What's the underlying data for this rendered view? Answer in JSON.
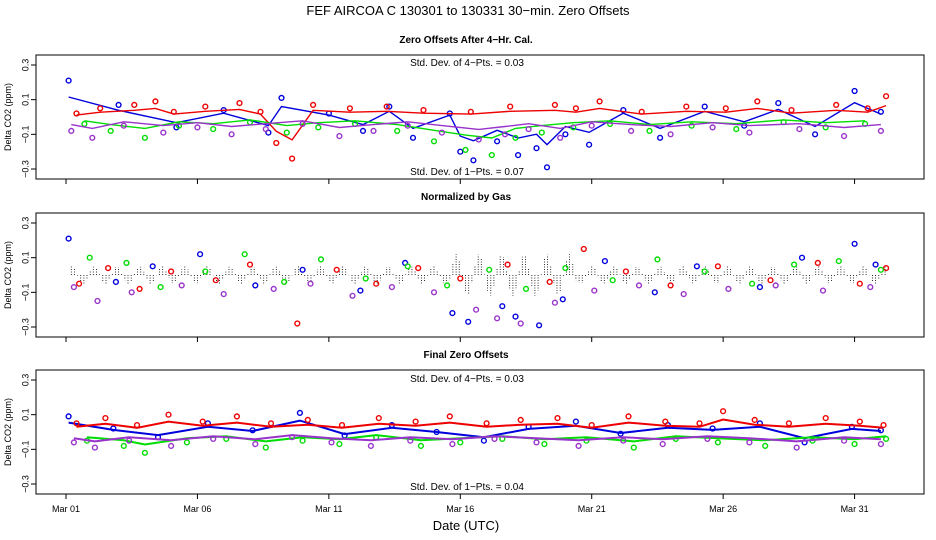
{
  "figure": {
    "title": "FEF   AIRCOA C   130301 to 130331   30−min. Zero Offsets",
    "xlabel": "Date (UTC)"
  },
  "colors": {
    "blue": "#0000dd",
    "red": "#ee0000",
    "green": "#00dd00",
    "purple": "#9933cc",
    "black": "#000000"
  },
  "chart_data": [
    {
      "type": "line",
      "title": "Zero Offsets After 4−Hr. Cal.",
      "ylabel": "Delta CO2 (ppm)",
      "xlabel": "Date (UTC)",
      "ylim": [
        -0.3,
        0.3
      ],
      "yticks": [
        "0.3",
        "0.1",
        "−0.1",
        "−0.3"
      ],
      "yticks_values": [
        0.3,
        0.1,
        -0.1,
        -0.3
      ],
      "xlim": [
        0,
        31.5
      ],
      "xticks": [],
      "stat_top": "Std. Dev. of 4−Pts. =  0.03",
      "stat_bottom": "Std. Dev. of 1−Pts. =  0.07",
      "series": [
        {
          "name": "blue",
          "color": "#0000dd",
          "x": [
            0.1,
            2.0,
            4.2,
            6.0,
            7.7,
            8.2,
            10.0,
            11.3,
            12.3,
            13.2,
            14.6,
            15.0,
            15.5,
            16.4,
            17.2,
            17.9,
            18.3,
            19.0,
            19.9,
            21.2,
            22.6,
            24.3,
            25.8,
            27.1,
            28.5,
            30.0,
            31.0
          ],
          "values": [
            0.21,
            0.07,
            -0.06,
            0.04,
            -0.09,
            0.11,
            0.02,
            -0.08,
            0.06,
            -0.12,
            0.02,
            -0.2,
            -0.25,
            -0.14,
            -0.22,
            -0.18,
            -0.29,
            -0.1,
            -0.16,
            0.04,
            -0.12,
            0.06,
            -0.05,
            0.08,
            -0.1,
            0.15,
            0.03
          ]
        },
        {
          "name": "red",
          "color": "#ee0000",
          "x": [
            0.4,
            1.3,
            2.6,
            3.4,
            4.1,
            5.3,
            6.6,
            7.4,
            8.0,
            8.6,
            9.4,
            10.8,
            12.2,
            13.6,
            15.4,
            16.9,
            18.6,
            19.4,
            20.3,
            21.9,
            23.6,
            25.1,
            26.3,
            27.6,
            29.3,
            30.5,
            31.2
          ],
          "values": [
            0.02,
            0.05,
            0.07,
            0.09,
            0.03,
            0.06,
            0.08,
            0.03,
            -0.15,
            -0.24,
            0.07,
            0.05,
            0.06,
            0.04,
            0.03,
            0.06,
            0.07,
            0.05,
            0.09,
            0.03,
            0.06,
            0.05,
            0.09,
            0.04,
            0.07,
            0.05,
            0.12
          ]
        },
        {
          "name": "green",
          "color": "#00dd00",
          "x": [
            0.7,
            1.7,
            3.0,
            4.3,
            5.6,
            7.0,
            8.4,
            9.6,
            11.0,
            12.6,
            14.0,
            15.2,
            16.2,
            17.1,
            18.1,
            19.3,
            20.7,
            22.2,
            23.8,
            25.5,
            27.3,
            28.9,
            30.4
          ],
          "values": [
            -0.04,
            -0.08,
            -0.12,
            -0.05,
            -0.07,
            -0.03,
            -0.09,
            -0.06,
            -0.04,
            -0.08,
            -0.14,
            -0.19,
            -0.22,
            -0.12,
            -0.09,
            -0.06,
            -0.04,
            -0.08,
            -0.05,
            -0.07,
            -0.03,
            -0.06,
            -0.04
          ]
        },
        {
          "name": "purple",
          "color": "#9933cc",
          "x": [
            0.2,
            1.0,
            2.2,
            3.7,
            5.0,
            6.3,
            7.6,
            9.0,
            10.4,
            11.7,
            13.0,
            14.3,
            15.7,
            16.7,
            17.6,
            18.8,
            20.0,
            21.5,
            23.0,
            24.6,
            26.0,
            27.9,
            29.6,
            31.0
          ],
          "values": [
            -0.08,
            -0.12,
            -0.05,
            -0.09,
            -0.06,
            -0.1,
            -0.07,
            -0.04,
            -0.11,
            -0.08,
            -0.05,
            -0.09,
            -0.13,
            -0.1,
            -0.07,
            -0.12,
            -0.05,
            -0.08,
            -0.1,
            -0.06,
            -0.09,
            -0.07,
            -0.11,
            -0.08
          ]
        }
      ]
    },
    {
      "type": "scatter",
      "title": "Normalized by Gas",
      "ylabel": "Delta CO2 (ppm)",
      "xlabel": "Date (UTC)",
      "ylim": [
        -0.3,
        0.3
      ],
      "yticks": [
        "0.3",
        "0.1",
        "−0.1",
        "−0.3"
      ],
      "yticks_values": [
        0.3,
        0.1,
        -0.1,
        -0.3
      ],
      "xlim": [
        0,
        31.5
      ],
      "xticks": [],
      "series": [
        {
          "name": "blue",
          "color": "#0000dd",
          "x": [
            0.1,
            1.9,
            3.3,
            5.1,
            7.2,
            9.0,
            11.2,
            12.9,
            14.7,
            15.3,
            16.6,
            17.1,
            18.0,
            18.9,
            20.5,
            22.4,
            24.0,
            26.4,
            28.0,
            30.0,
            30.8
          ],
          "values": [
            0.21,
            -0.04,
            0.05,
            0.12,
            -0.06,
            0.03,
            -0.09,
            0.07,
            -0.22,
            -0.27,
            -0.18,
            -0.24,
            -0.29,
            -0.14,
            0.08,
            -0.1,
            0.05,
            -0.07,
            0.1,
            0.18,
            0.06
          ]
        },
        {
          "name": "red",
          "color": "#ee0000",
          "x": [
            0.5,
            1.6,
            2.8,
            4.0,
            5.7,
            7.0,
            8.8,
            10.3,
            11.8,
            13.4,
            15.0,
            16.8,
            18.4,
            19.7,
            21.3,
            23.0,
            24.8,
            26.8,
            28.6,
            30.2,
            31.2
          ],
          "values": [
            -0.05,
            0.04,
            -0.08,
            0.02,
            -0.03,
            0.06,
            -0.28,
            0.03,
            -0.05,
            0.04,
            -0.02,
            0.06,
            -0.04,
            0.15,
            0.02,
            -0.06,
            0.05,
            -0.03,
            0.07,
            -0.05,
            0.04
          ]
        },
        {
          "name": "green",
          "color": "#00dd00",
          "x": [
            0.9,
            2.3,
            3.6,
            5.3,
            6.8,
            8.3,
            9.7,
            11.4,
            13.0,
            14.5,
            16.1,
            17.5,
            19.0,
            20.8,
            22.5,
            24.3,
            26.1,
            27.7,
            29.4,
            31.0
          ],
          "values": [
            0.1,
            0.07,
            -0.07,
            0.02,
            0.12,
            -0.04,
            0.09,
            -0.02,
            0.05,
            -0.06,
            0.03,
            -0.08,
            0.04,
            -0.03,
            0.09,
            0.02,
            -0.05,
            0.06,
            0.08,
            0.03
          ]
        },
        {
          "name": "purple",
          "color": "#9933cc",
          "x": [
            0.3,
            1.2,
            2.5,
            4.4,
            6.0,
            7.9,
            9.3,
            10.9,
            12.4,
            14.0,
            15.6,
            16.4,
            17.3,
            18.6,
            20.1,
            21.8,
            23.5,
            25.2,
            27.0,
            28.8,
            30.6
          ],
          "values": [
            -0.07,
            -0.15,
            -0.1,
            -0.06,
            -0.11,
            -0.08,
            -0.05,
            -0.12,
            -0.07,
            -0.1,
            -0.2,
            -0.25,
            -0.28,
            -0.16,
            -0.09,
            -0.06,
            -0.11,
            -0.08,
            -0.06,
            -0.09,
            -0.07
          ]
        },
        {
          "name": "black",
          "color": "#000000",
          "x": [],
          "values": []
        }
      ]
    },
    {
      "type": "scatter",
      "title": "Final Zero Offsets",
      "ylabel": "Delta CO2 (ppm)",
      "xlabel": "Date (UTC)",
      "ylim": [
        -0.3,
        0.3
      ],
      "yticks": [
        "0.3",
        "0.1",
        "−0.1",
        "−0.3"
      ],
      "yticks_values": [
        0.3,
        0.1,
        -0.1,
        -0.3
      ],
      "xlim": [
        0,
        31.5
      ],
      "xticks": [
        "Mar 01",
        "Mar 06",
        "Mar 11",
        "Mar 16",
        "Mar 21",
        "Mar 26",
        "Mar 31"
      ],
      "xticks_values": [
        0,
        5,
        10,
        15,
        20,
        25,
        30
      ],
      "stat_top": "Std. Dev. of 4−Pts. =  0.03",
      "stat_bottom": "Std. Dev. of 1−Pts. =  0.04",
      "series": [
        {
          "name": "blue",
          "color": "#0000dd",
          "x": [
            0.1,
            1.8,
            3.5,
            5.4,
            7.1,
            8.9,
            10.6,
            12.4,
            14.1,
            15.9,
            17.6,
            19.4,
            21.1,
            22.9,
            24.6,
            26.4,
            28.1,
            29.9,
            31.0
          ],
          "values": [
            0.09,
            0.02,
            -0.03,
            0.05,
            0.01,
            0.11,
            -0.02,
            0.04,
            0.0,
            -0.05,
            0.03,
            0.06,
            -0.01,
            0.04,
            0.02,
            0.05,
            -0.06,
            0.03,
            0.01
          ]
        },
        {
          "name": "red",
          "color": "#ee0000",
          "x": [
            0.4,
            1.5,
            2.7,
            3.9,
            5.2,
            6.5,
            7.8,
            9.2,
            10.5,
            11.9,
            13.3,
            14.6,
            16.0,
            17.3,
            18.7,
            20.0,
            21.4,
            22.8,
            24.1,
            25.0,
            26.2,
            27.5,
            28.9,
            30.2,
            31.1
          ],
          "values": [
            0.05,
            0.08,
            0.04,
            0.1,
            0.06,
            0.09,
            0.05,
            0.07,
            0.04,
            0.08,
            0.06,
            0.09,
            0.05,
            0.07,
            0.08,
            0.04,
            0.09,
            0.06,
            0.05,
            0.12,
            0.07,
            0.05,
            0.08,
            0.06,
            0.04
          ]
        },
        {
          "name": "green",
          "color": "#00dd00",
          "x": [
            0.8,
            2.2,
            3.0,
            4.6,
            6.1,
            7.6,
            9.0,
            10.4,
            11.8,
            13.5,
            15.0,
            16.6,
            18.2,
            19.8,
            21.6,
            23.2,
            24.8,
            26.6,
            28.4,
            30.0,
            31.2
          ],
          "values": [
            -0.05,
            -0.08,
            -0.12,
            -0.06,
            -0.04,
            -0.09,
            -0.05,
            -0.07,
            -0.03,
            -0.08,
            -0.06,
            -0.04,
            -0.07,
            -0.05,
            -0.09,
            -0.04,
            -0.06,
            -0.08,
            -0.05,
            -0.07,
            -0.04
          ]
        },
        {
          "name": "purple",
          "color": "#9933cc",
          "x": [
            0.3,
            1.1,
            2.4,
            4.0,
            5.6,
            7.2,
            8.6,
            10.1,
            11.6,
            13.1,
            14.7,
            16.3,
            17.9,
            19.5,
            21.2,
            22.7,
            24.4,
            26.0,
            27.8,
            29.6,
            31.0
          ],
          "values": [
            -0.06,
            -0.09,
            -0.05,
            -0.08,
            -0.04,
            -0.07,
            -0.03,
            -0.06,
            -0.08,
            -0.05,
            -0.07,
            -0.04,
            -0.06,
            -0.08,
            -0.05,
            -0.07,
            -0.04,
            -0.06,
            -0.09,
            -0.05,
            -0.07
          ]
        }
      ]
    }
  ]
}
